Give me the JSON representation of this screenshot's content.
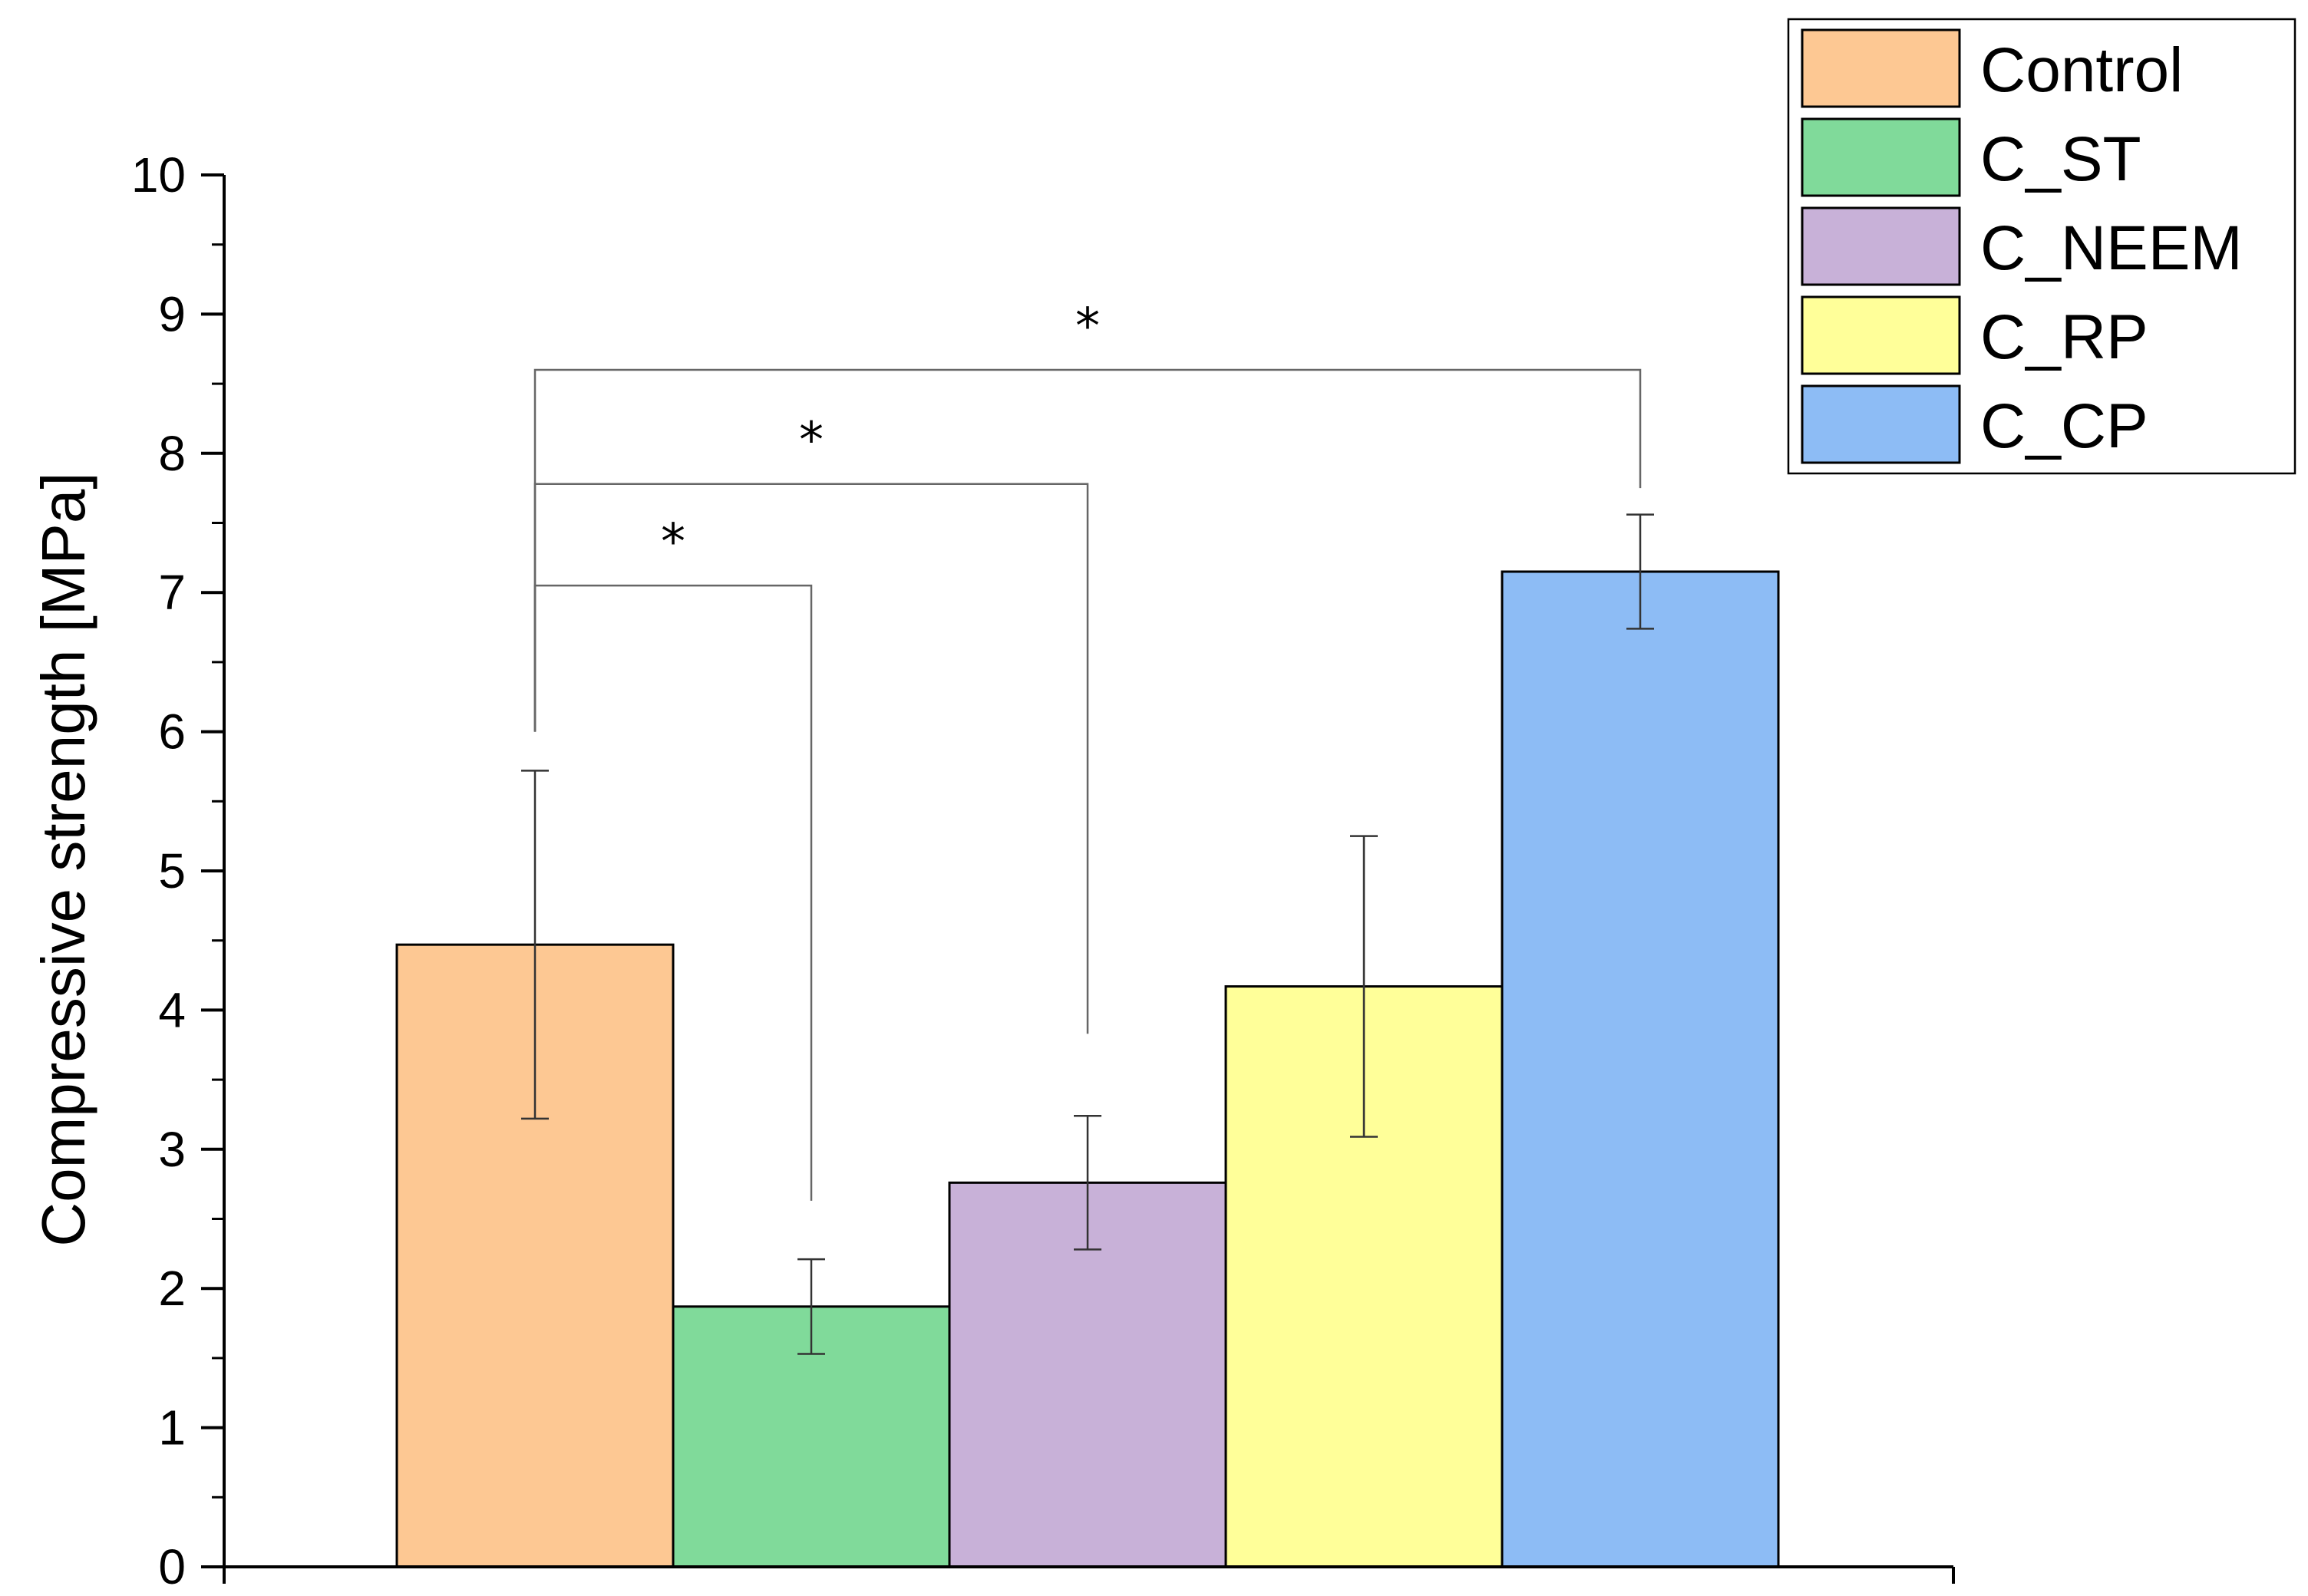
{
  "chart_data": {
    "type": "bar",
    "title": "",
    "xlabel": "",
    "ylabel": "Compressive strength [MPa]",
    "ylim": [
      0,
      10
    ],
    "yticks": [
      "0",
      "1",
      "2",
      "3",
      "4",
      "5",
      "6",
      "7",
      "8",
      "9",
      "10"
    ],
    "grid": false,
    "legend_position": "top-right",
    "categories": [
      "Control",
      "C_ST",
      "C_NEEM",
      "C_RP",
      "C_CP"
    ],
    "values": [
      4.47,
      1.87,
      2.76,
      4.17,
      7.15
    ],
    "errors": [
      1.25,
      0.34,
      0.48,
      1.08,
      0.41
    ],
    "colors": [
      "#FDC893",
      "#80DA9A",
      "#C8B1D8",
      "#FFFF99",
      "#8DBCF5"
    ],
    "significance": [
      {
        "from": "Control",
        "to": "C_ST",
        "label": "*"
      },
      {
        "from": "Control",
        "to": "C_NEEM",
        "label": "*"
      },
      {
        "from": "Control",
        "to": "C_CP",
        "label": "*"
      }
    ]
  }
}
